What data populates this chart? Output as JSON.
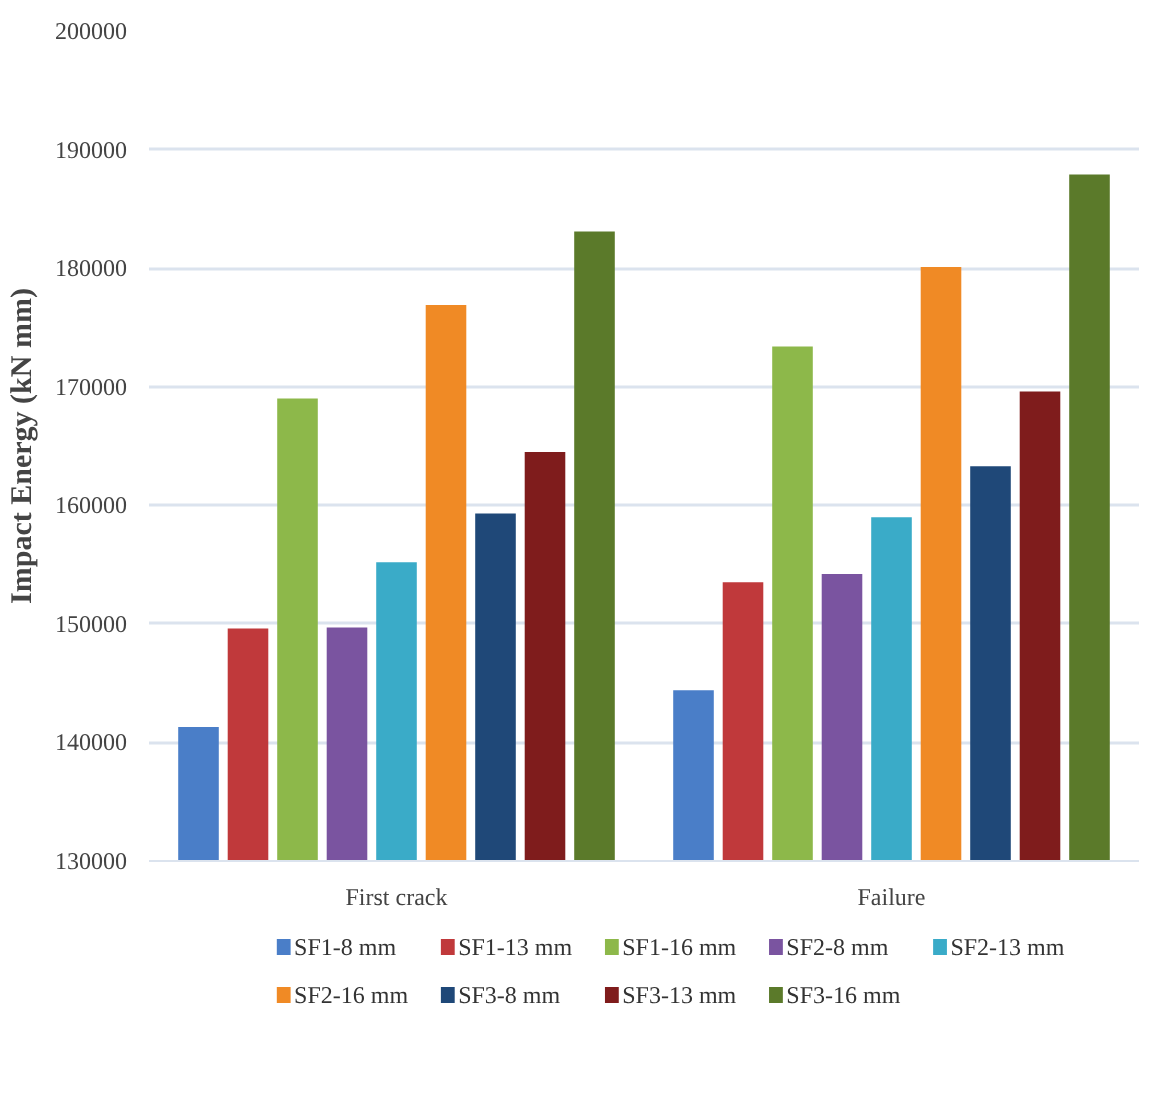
{
  "chart_data": {
    "type": "bar",
    "ylabel": "Impact Energy (kN mm)",
    "categories": [
      "First crack",
      "Failure"
    ],
    "series": [
      {
        "name": "SF1-8 mm",
        "color": "#4a7ec8",
        "values": [
          141300,
          144400
        ]
      },
      {
        "name": "SF1-13 mm",
        "color": "#c0393b",
        "values": [
          149600,
          153500
        ]
      },
      {
        "name": "SF1-16 mm",
        "color": "#8db84a",
        "values": [
          169000,
          173400
        ]
      },
      {
        "name": "SF2-8 mm",
        "color": "#7a54a0",
        "values": [
          149700,
          154200
        ]
      },
      {
        "name": "SF2-13 mm",
        "color": "#3aabc8",
        "values": [
          155200,
          159000
        ]
      },
      {
        "name": "SF2-16 mm",
        "color": "#f08a25",
        "values": [
          176900,
          180100
        ]
      },
      {
        "name": "SF3-8 mm",
        "color": "#1f4878",
        "values": [
          159300,
          163300
        ]
      },
      {
        "name": "SF3-13 mm",
        "color": "#7f1c1c",
        "values": [
          164500,
          169600
        ]
      },
      {
        "name": "SF3-16 mm",
        "color": "#5b7a2a",
        "values": [
          183100,
          187900
        ]
      }
    ],
    "ylim": [
      130000,
      200000
    ],
    "yticks": [
      130000,
      140000,
      150000,
      160000,
      170000,
      180000,
      190000,
      200000
    ],
    "grid": "y",
    "legend": "bottom"
  }
}
